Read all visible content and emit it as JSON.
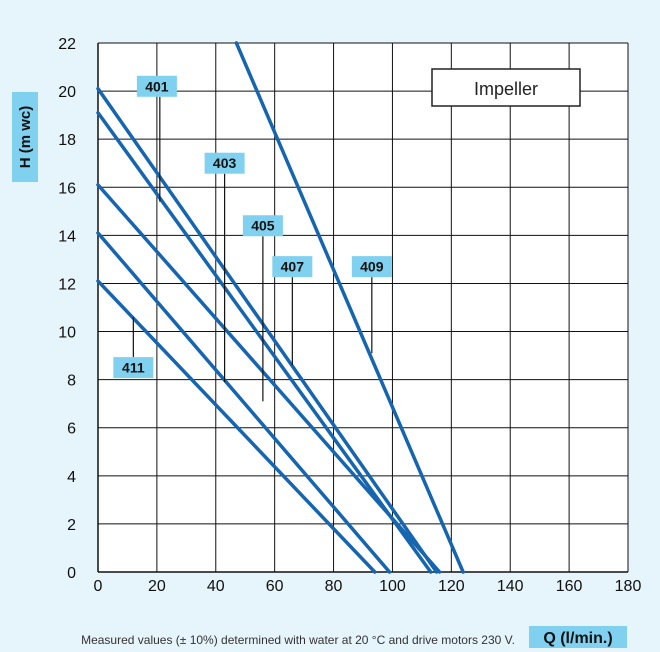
{
  "chart_data": {
    "type": "line",
    "xlabel": "Q (l/min.)",
    "ylabel": "H (m wc)",
    "xlim": [
      0,
      180
    ],
    "ylim": [
      0,
      22
    ],
    "x_ticks": [
      "0",
      "20",
      "40",
      "60",
      "80",
      "100",
      "120",
      "140",
      "160",
      "180"
    ],
    "y_ticks": [
      "0",
      "2",
      "4",
      "6",
      "8",
      "10",
      "12",
      "14",
      "16",
      "18",
      "20",
      "22"
    ],
    "grid": true,
    "legend_title": "Impeller",
    "note": "Measured values (± 10%) determined with water at 20 °C and drive motors 230 V.",
    "series": [
      {
        "name": "401",
        "x": [
          0,
          115
        ],
        "y": [
          20.1,
          0
        ],
        "label_q": 21,
        "label_pos": {
          "q": 20,
          "h": 20.2
        },
        "leader_end_h": 15.4
      },
      {
        "name": "403",
        "x": [
          0,
          113
        ],
        "y": [
          19.1,
          0
        ],
        "label_q": 43,
        "label_pos": {
          "q": 43,
          "h": 17.0
        },
        "leader_end_h": 7.9
      },
      {
        "name": "405",
        "x": [
          0,
          116
        ],
        "y": [
          16.1,
          0
        ],
        "label_q": 56,
        "label_pos": {
          "q": 56,
          "h": 14.4
        },
        "leader_end_h": 7.1
      },
      {
        "name": "407",
        "x": [
          0,
          99
        ],
        "y": [
          14.1,
          0
        ],
        "label_q": 66,
        "label_pos": {
          "q": 66,
          "h": 12.7
        },
        "leader_end_h": 8.6
      },
      {
        "name": "409",
        "x": [
          47,
          124
        ],
        "y": [
          22,
          0
        ],
        "label_q": 93,
        "label_pos": {
          "q": 93,
          "h": 12.7
        },
        "leader_end_h": 9.1
      },
      {
        "name": "411",
        "x": [
          0,
          94
        ],
        "y": [
          12.1,
          0
        ],
        "label_q": 12,
        "label_pos": {
          "q": 12,
          "h": 8.5
        },
        "leader_end_h": 10.6
      }
    ]
  },
  "colors": {
    "background": "#e6f4fb",
    "line": "#1565b0",
    "accent": "#7fd1ef",
    "grid": "#111111"
  }
}
